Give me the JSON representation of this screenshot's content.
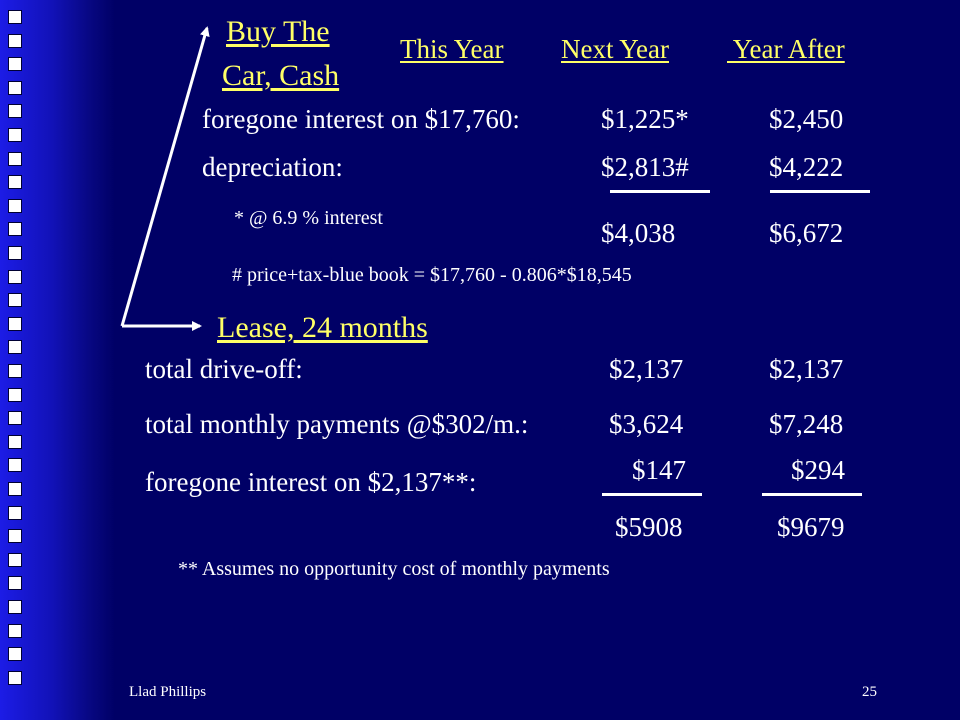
{
  "slide": {
    "number": "25",
    "author": "Llad Phillips"
  },
  "buy": {
    "title_line1": "Buy The",
    "title_line2": "Car, Cash",
    "columns": {
      "this_year": "This Year",
      "next_year": "Next Year",
      "year_after": " Year After"
    },
    "rows": [
      {
        "label": "foregone interest on $17,760:",
        "next_year": "$1,225*",
        "year_after": "$2,450"
      },
      {
        "label": "depreciation:",
        "next_year": "$2,813#",
        "year_after": "$4,222"
      }
    ],
    "note_interest": "* @ 6.9 % interest",
    "totals": {
      "next_year": "$4,038",
      "year_after": "$6,672"
    },
    "note_price": "# price+tax-blue book = $17,760 - 0.806*$18,545"
  },
  "lease": {
    "title": "Lease, 24 months",
    "rows": [
      {
        "label": "total drive-off:",
        "next_year": "$2,137",
        "year_after": "$2,137"
      },
      {
        "label": "total monthly payments @$302/m.:",
        "next_year": "$3,624",
        "year_after": "$7,248"
      },
      {
        "label": "foregone interest on $2,137**:",
        "next_year": "$147",
        "year_after": "$294"
      }
    ],
    "totals": {
      "next_year": "$5908",
      "year_after": "$9679"
    },
    "note": "** Assumes no opportunity cost of monthly payments"
  },
  "colors": {
    "background": "#000066",
    "heading": "#ffff66",
    "text": "#ffffff"
  }
}
